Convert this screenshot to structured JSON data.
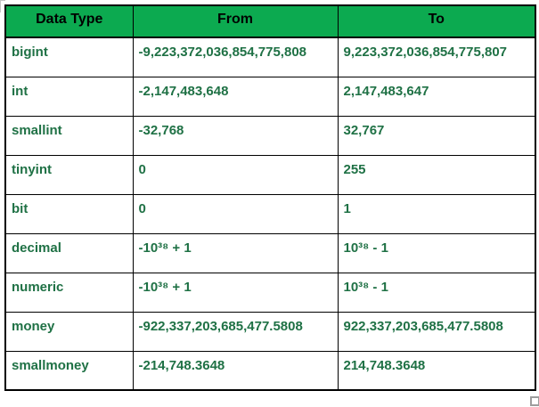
{
  "table": {
    "headers": [
      {
        "label": "Data Type"
      },
      {
        "label": "From"
      },
      {
        "label": "To"
      }
    ],
    "rows": [
      {
        "type": "bigint",
        "from": "-9,223,372,036,854,775,808",
        "to": "9,223,372,036,854,775,807"
      },
      {
        "type": "int",
        "from": "-2,147,483,648",
        "to": "2,147,483,647"
      },
      {
        "type": "smallint",
        "from": "-32,768",
        "to": "32,767"
      },
      {
        "type": "tinyint",
        "from": "0",
        "to": "255"
      },
      {
        "type": "bit",
        "from": "0",
        "to": "1"
      },
      {
        "type": "decimal",
        "from": "-10³⁸ + 1",
        "to": "10³⁸ - 1"
      },
      {
        "type": "numeric",
        "from": "-10³⁸ + 1",
        "to": "10³⁸ - 1"
      },
      {
        "type": "money",
        "from": "-922,337,203,685,477.5808",
        "to": "922,337,203,685,477.5808"
      },
      {
        "type": "smallmoney",
        "from": "-214,748.3648",
        "to": "214,748.3648"
      }
    ]
  },
  "colors": {
    "header_bg": "#0caa50",
    "data_text": "#1f7145",
    "border": "#000000",
    "handle": "#9d9d9d"
  }
}
